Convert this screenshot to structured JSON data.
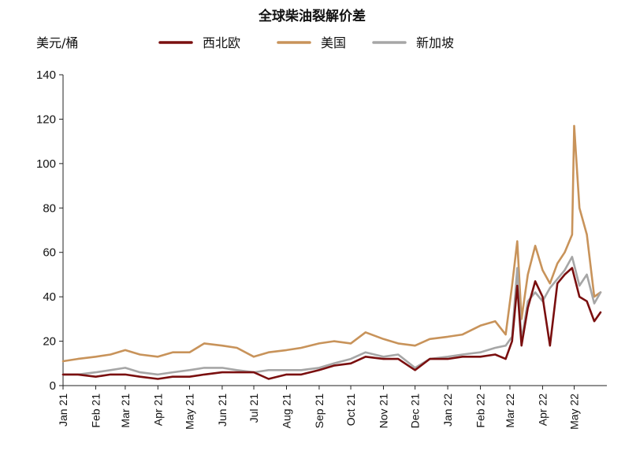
{
  "chart_data": {
    "type": "line",
    "title": "全球柴油裂解价差",
    "ylabel": "美元/桶",
    "ylim": [
      0,
      140
    ],
    "yticks": [
      "0",
      "20",
      "40",
      "60",
      "80",
      "100",
      "120",
      "140"
    ],
    "xticks": [
      "Jan 21",
      "Feb 21",
      "Mar 21",
      "Apr 21",
      "May 21",
      "Jun 21",
      "Jul 21",
      "Aug 21",
      "Sep 21",
      "Oct 21",
      "Nov 21",
      "Dec 21",
      "Jan 22",
      "Feb 22",
      "Mar 22",
      "Apr 22",
      "May 22"
    ],
    "x_months": [
      "2021-01",
      "2021-02",
      "2021-03",
      "2021-04",
      "2021-05",
      "2021-06",
      "2021-07",
      "2021-08",
      "2021-09",
      "2021-10",
      "2021-11",
      "2021-12",
      "2022-01",
      "2022-02",
      "2022-03",
      "2022-04",
      "2022-05"
    ],
    "legend_position": "top",
    "grid": false,
    "series": [
      {
        "name": "西北欧",
        "color": "#7a0f0f",
        "x": [
          "2021-01-01",
          "2021-01-15",
          "2021-02-01",
          "2021-02-15",
          "2021-03-01",
          "2021-03-15",
          "2021-04-01",
          "2021-04-15",
          "2021-05-01",
          "2021-05-15",
          "2021-06-01",
          "2021-06-15",
          "2021-07-01",
          "2021-07-15",
          "2021-08-01",
          "2021-08-15",
          "2021-09-01",
          "2021-09-15",
          "2021-10-01",
          "2021-10-15",
          "2021-11-01",
          "2021-11-15",
          "2021-12-01",
          "2021-12-15",
          "2022-01-01",
          "2022-01-15",
          "2022-02-01",
          "2022-02-15",
          "2022-02-25",
          "2022-03-03",
          "2022-03-08",
          "2022-03-12",
          "2022-03-18",
          "2022-03-25",
          "2022-04-01",
          "2022-04-08",
          "2022-04-15",
          "2022-04-22",
          "2022-04-29",
          "2022-05-06",
          "2022-05-13",
          "2022-05-20",
          "2022-05-26"
        ],
        "values": [
          5,
          5,
          4,
          5,
          5,
          4,
          3,
          4,
          4,
          5,
          6,
          6,
          6,
          3,
          5,
          5,
          7,
          9,
          10,
          13,
          12,
          12,
          7,
          12,
          12,
          13,
          13,
          14,
          12,
          20,
          45,
          18,
          35,
          47,
          40,
          18,
          46,
          50,
          53,
          40,
          38,
          29,
          33
        ]
      },
      {
        "name": "美国",
        "color": "#c8935a",
        "x": [
          "2021-01-01",
          "2021-01-15",
          "2021-02-01",
          "2021-02-15",
          "2021-03-01",
          "2021-03-15",
          "2021-04-01",
          "2021-04-15",
          "2021-05-01",
          "2021-05-15",
          "2021-06-01",
          "2021-06-15",
          "2021-07-01",
          "2021-07-15",
          "2021-08-01",
          "2021-08-15",
          "2021-09-01",
          "2021-09-15",
          "2021-10-01",
          "2021-10-15",
          "2021-11-01",
          "2021-11-15",
          "2021-12-01",
          "2021-12-15",
          "2022-01-01",
          "2022-01-15",
          "2022-02-01",
          "2022-02-15",
          "2022-02-25",
          "2022-03-03",
          "2022-03-08",
          "2022-03-12",
          "2022-03-18",
          "2022-03-25",
          "2022-04-01",
          "2022-04-08",
          "2022-04-15",
          "2022-04-22",
          "2022-04-29",
          "2022-05-01",
          "2022-05-06",
          "2022-05-13",
          "2022-05-20",
          "2022-05-26"
        ],
        "values": [
          11,
          12,
          13,
          14,
          16,
          14,
          13,
          15,
          15,
          19,
          18,
          17,
          13,
          15,
          16,
          17,
          19,
          20,
          19,
          24,
          21,
          19,
          18,
          21,
          22,
          23,
          27,
          29,
          23,
          45,
          65,
          30,
          50,
          63,
          52,
          46,
          55,
          60,
          68,
          117,
          80,
          68,
          40,
          42
        ]
      },
      {
        "name": "新加坡",
        "color": "#a6a6a6",
        "x": [
          "2021-01-01",
          "2021-01-15",
          "2021-02-01",
          "2021-02-15",
          "2021-03-01",
          "2021-03-15",
          "2021-04-01",
          "2021-04-15",
          "2021-05-01",
          "2021-05-15",
          "2021-06-01",
          "2021-06-15",
          "2021-07-01",
          "2021-07-15",
          "2021-08-01",
          "2021-08-15",
          "2021-09-01",
          "2021-09-15",
          "2021-10-01",
          "2021-10-15",
          "2021-11-01",
          "2021-11-15",
          "2021-12-01",
          "2021-12-15",
          "2022-01-01",
          "2022-01-15",
          "2022-02-01",
          "2022-02-15",
          "2022-02-25",
          "2022-03-03",
          "2022-03-08",
          "2022-03-12",
          "2022-03-18",
          "2022-03-25",
          "2022-04-01",
          "2022-04-08",
          "2022-04-15",
          "2022-04-22",
          "2022-04-29",
          "2022-05-06",
          "2022-05-13",
          "2022-05-20",
          "2022-05-26"
        ],
        "values": [
          5,
          5,
          6,
          7,
          8,
          6,
          5,
          6,
          7,
          8,
          8,
          7,
          6,
          7,
          7,
          7,
          8,
          10,
          12,
          15,
          13,
          14,
          8,
          12,
          13,
          14,
          15,
          17,
          18,
          22,
          53,
          20,
          38,
          42,
          38,
          44,
          48,
          52,
          58,
          45,
          50,
          37,
          42
        ]
      }
    ]
  }
}
